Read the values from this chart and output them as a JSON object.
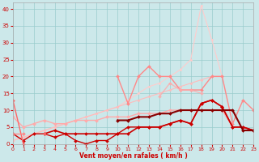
{
  "xlabel": "Vent moyen/en rafales ( km/h )",
  "ylabel": "",
  "xlim": [
    0,
    23
  ],
  "ylim": [
    0,
    42
  ],
  "yticks": [
    0,
    5,
    10,
    15,
    20,
    25,
    30,
    35,
    40
  ],
  "xticks": [
    0,
    1,
    2,
    3,
    4,
    5,
    6,
    7,
    8,
    9,
    10,
    11,
    12,
    13,
    14,
    15,
    16,
    17,
    18,
    19,
    20,
    21,
    22,
    23
  ],
  "background_color": "#cce8ea",
  "grid_color": "#99cccc",
  "series": [
    {
      "x": [
        0,
        1,
        2,
        3,
        4,
        5,
        6,
        7,
        8,
        9,
        10,
        11,
        12,
        13,
        14,
        15,
        16,
        17,
        18,
        19,
        20,
        21,
        22,
        23
      ],
      "y": [
        1,
        2,
        3,
        4,
        5,
        6,
        7,
        8,
        9,
        10,
        11,
        13,
        15,
        17,
        18,
        20,
        22,
        25,
        41,
        31,
        20,
        null,
        null,
        null
      ],
      "color": "#ffcccc",
      "linewidth": 0.8,
      "marker": "D",
      "markersize": 1.5,
      "alpha": 1.0
    },
    {
      "x": [
        0,
        1,
        2,
        3,
        4,
        5,
        6,
        7,
        8,
        9,
        10,
        11,
        12,
        13,
        14,
        15,
        16,
        17,
        18,
        19,
        20,
        21,
        22,
        23
      ],
      "y": [
        1,
        2,
        3,
        4,
        5,
        6,
        7,
        8,
        9,
        10,
        11,
        12,
        13,
        14,
        15,
        16,
        17,
        18,
        19,
        20,
        20,
        null,
        null,
        null
      ],
      "color": "#ffbbbb",
      "linewidth": 0.8,
      "marker": "D",
      "markersize": 1.5,
      "alpha": 1.0
    },
    {
      "x": [
        0,
        1,
        2,
        3,
        4,
        5,
        6,
        7,
        8,
        9,
        10,
        11,
        12,
        13,
        14,
        15,
        16,
        17,
        18,
        19,
        20,
        21,
        22,
        23
      ],
      "y": [
        null,
        null,
        null,
        null,
        null,
        null,
        null,
        null,
        null,
        null,
        20,
        12,
        20,
        23,
        20,
        20,
        16,
        16,
        16,
        20,
        20,
        6,
        13,
        10
      ],
      "color": "#ff8888",
      "linewidth": 1.0,
      "marker": "D",
      "markersize": 2,
      "alpha": 1.0
    },
    {
      "x": [
        0,
        1,
        2,
        3,
        4,
        5,
        6,
        7,
        8,
        9,
        10,
        11,
        12,
        13,
        14,
        15,
        16,
        17,
        18,
        19,
        20,
        21,
        22,
        23
      ],
      "y": [
        8,
        5,
        6,
        7,
        6,
        6,
        7,
        7,
        7,
        8,
        8,
        8,
        9,
        9,
        9,
        10,
        10,
        10,
        10,
        10,
        10,
        5,
        5,
        4
      ],
      "color": "#ffaaaa",
      "linewidth": 1.0,
      "marker": "D",
      "markersize": 2,
      "alpha": 1.0
    },
    {
      "x": [
        14,
        15,
        16,
        17,
        18
      ],
      "y": [
        14,
        18,
        16,
        16,
        15
      ],
      "color": "#ffaaaa",
      "linewidth": 1.0,
      "marker": "D",
      "markersize": 2,
      "alpha": 0.8
    },
    {
      "x": [
        0,
        1,
        2,
        3,
        4,
        5,
        6,
        7,
        8,
        9,
        10,
        11,
        12,
        13,
        14,
        15,
        16,
        17,
        18,
        19,
        20,
        21,
        22,
        23
      ],
      "y": [
        3,
        1,
        3,
        3,
        2,
        3,
        1,
        0,
        1,
        1,
        3,
        5,
        5,
        5,
        5,
        6,
        7,
        6,
        12,
        13,
        11,
        5,
        5,
        4
      ],
      "color": "#cc0000",
      "linewidth": 1.0,
      "marker": "D",
      "markersize": 2,
      "alpha": 1.0
    },
    {
      "x": [
        3,
        4,
        5,
        6,
        7,
        8,
        9,
        10,
        11,
        12,
        13,
        14,
        15,
        16,
        17,
        18,
        19,
        20,
        21,
        22,
        23
      ],
      "y": [
        3,
        4,
        3,
        3,
        3,
        3,
        3,
        3,
        3,
        5,
        5,
        5,
        6,
        7,
        6,
        12,
        13,
        11,
        5,
        5,
        4
      ],
      "color": "#cc0000",
      "linewidth": 1.2,
      "marker": "D",
      "markersize": 2,
      "alpha": 1.0
    },
    {
      "x": [
        10,
        11,
        12,
        13,
        14,
        15,
        16,
        17,
        18,
        19,
        20,
        21,
        22,
        23
      ],
      "y": [
        7,
        7,
        8,
        8,
        9,
        9,
        10,
        10,
        10,
        10,
        10,
        10,
        4,
        4
      ],
      "color": "#880000",
      "linewidth": 1.5,
      "marker": "D",
      "markersize": 2,
      "alpha": 1.0
    },
    {
      "x": [
        0,
        1,
        2,
        3
      ],
      "y": [
        13,
        0,
        null,
        3
      ],
      "color": "#ff6666",
      "linewidth": 1.0,
      "marker": "D",
      "markersize": 2,
      "alpha": 1.0
    },
    {
      "x": [
        0,
        1
      ],
      "y": [
        3,
        3
      ],
      "color": "#ff8888",
      "linewidth": 1.0,
      "marker": "D",
      "markersize": 2,
      "alpha": 1.0
    }
  ]
}
